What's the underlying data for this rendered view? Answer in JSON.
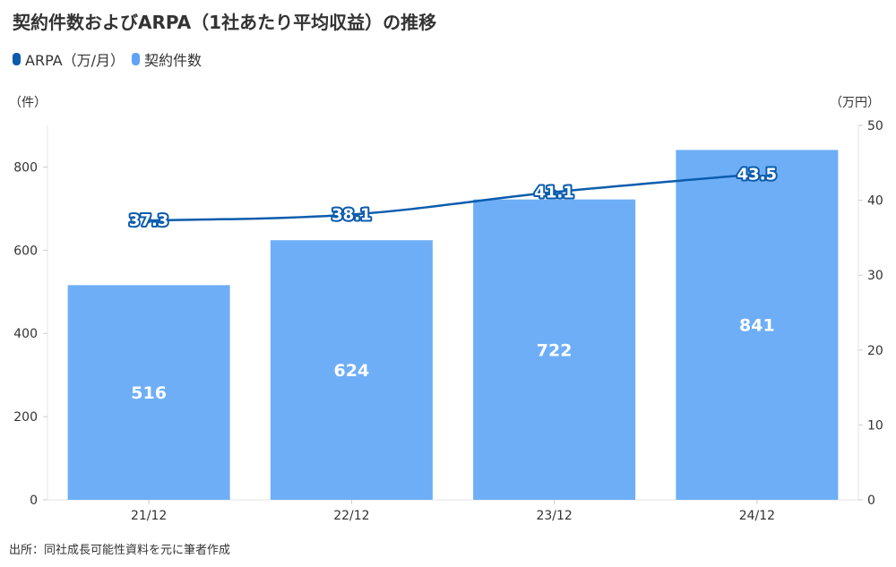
{
  "title": "契約件数およびARPA（1社あたり平均収益）の推移",
  "legend": [
    {
      "label": "ARPA（万/月）",
      "color": "#0b5cad"
    },
    {
      "label": "契約件数",
      "color": "#5ea3f5"
    }
  ],
  "unit_left": "（件）",
  "unit_right": "（万円）",
  "source": "出所：同社成長可能性資料を元に筆者作成",
  "chart_data": {
    "type": "bar",
    "title": "契約件数およびARPA（1社あたり平均収益）の推移",
    "categories": [
      "21/12",
      "22/12",
      "23/12",
      "24/12"
    ],
    "series": [
      {
        "name": "契約件数",
        "type": "bar",
        "axis": "left",
        "values": [
          516,
          624,
          722,
          841
        ],
        "labels": [
          "516",
          "624",
          "722",
          "841"
        ],
        "color": "#6eaef7"
      },
      {
        "name": "ARPA（万/月）",
        "type": "line",
        "axis": "right",
        "values": [
          37.3,
          38.1,
          41.1,
          43.5
        ],
        "labels": [
          "37.3",
          "38.1",
          "41.1",
          "43.5"
        ],
        "color": "#0b5cad"
      }
    ],
    "y_left": {
      "unit": "（件）",
      "range": [
        0,
        900
      ],
      "ticks": [
        0,
        200,
        400,
        600,
        800
      ],
      "tick_labels": [
        "0",
        "200",
        "400",
        "600",
        "800"
      ]
    },
    "y_right": {
      "unit": "（万円）",
      "range": [
        0,
        50
      ],
      "ticks": [
        0,
        10,
        20,
        30,
        40,
        50
      ],
      "tick_labels": [
        "0",
        "10",
        "20",
        "30",
        "40",
        "50"
      ]
    },
    "grid": false,
    "legend_position": "top-left"
  }
}
